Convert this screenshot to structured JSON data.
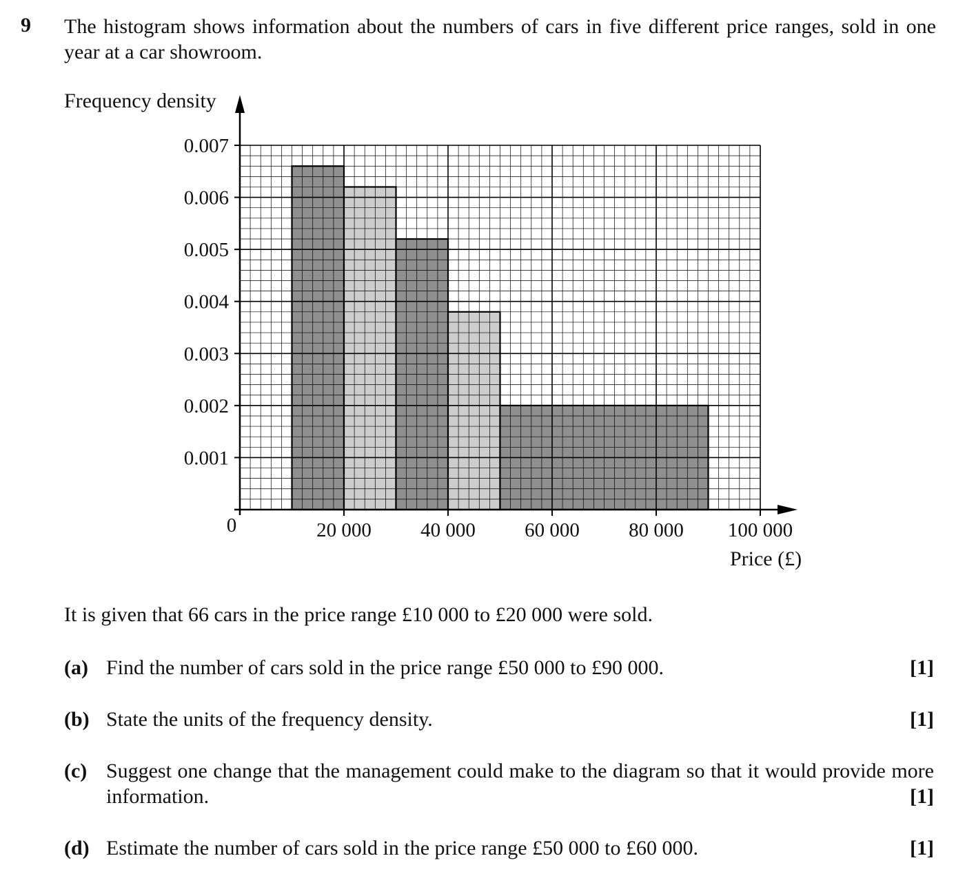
{
  "question": {
    "number": "9",
    "intro": "The histogram shows information about the numbers of cars in five different price ranges, sold in one year at a car showroom.",
    "given": "It is given that 66 cars in the price range £10 000 to £20 000 were sold.",
    "parts": [
      {
        "label": "(a)",
        "text": "Find the number of cars sold in the price range £50 000 to £90 000.",
        "marks": "[1]"
      },
      {
        "label": "(b)",
        "text": "State the units of the frequency density.",
        "marks": "[1]"
      },
      {
        "label": "(c)",
        "text": "Suggest one change that the management could make to the diagram so that it would provide more information.",
        "marks": "[1]"
      },
      {
        "label": "(d)",
        "text": "Estimate the number of cars sold in the price range £50 000 to £60 000.",
        "marks": "[1]"
      }
    ]
  },
  "chart_data": {
    "type": "bar",
    "ylabel": "Frequency density",
    "xlabel": "Price (£)",
    "origin_label": "0",
    "xlim": [
      0,
      100000
    ],
    "ylim": [
      0,
      0.007
    ],
    "grid": true,
    "x_ticks": [
      {
        "value": 20000,
        "label": "20 000"
      },
      {
        "value": 40000,
        "label": "40 000"
      },
      {
        "value": 60000,
        "label": "60 000"
      },
      {
        "value": 80000,
        "label": "80 000"
      },
      {
        "value": 100000,
        "label": "100 000"
      }
    ],
    "y_ticks": [
      {
        "value": 0.001,
        "label": "0.001"
      },
      {
        "value": 0.002,
        "label": "0.002"
      },
      {
        "value": 0.003,
        "label": "0.003"
      },
      {
        "value": 0.004,
        "label": "0.004"
      },
      {
        "value": 0.005,
        "label": "0.005"
      },
      {
        "value": 0.006,
        "label": "0.006"
      },
      {
        "value": 0.007,
        "label": "0.007"
      }
    ],
    "bars": [
      {
        "from": 10000,
        "to": 20000,
        "density": 0.0066,
        "shade": "#8f8f8f"
      },
      {
        "from": 20000,
        "to": 30000,
        "density": 0.0062,
        "shade": "#cdcdcd"
      },
      {
        "from": 30000,
        "to": 40000,
        "density": 0.0052,
        "shade": "#8f8f8f"
      },
      {
        "from": 40000,
        "to": 50000,
        "density": 0.0038,
        "shade": "#cdcdcd"
      },
      {
        "from": 50000,
        "to": 90000,
        "density": 0.002,
        "shade": "#8f8f8f"
      }
    ]
  }
}
